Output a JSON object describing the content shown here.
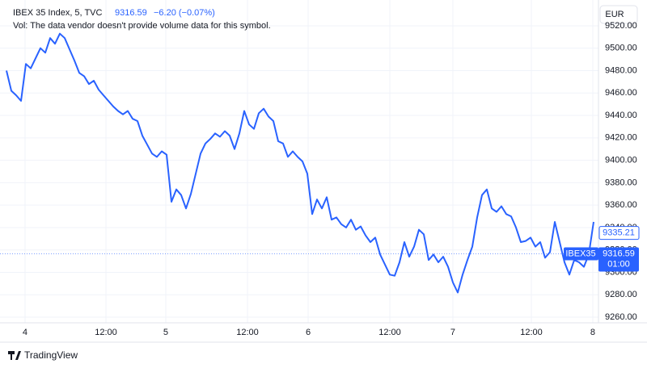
{
  "chart_data": {
    "type": "line",
    "title": "IBEX 35 Index, 5, TVC",
    "last_price": 9316.59,
    "change": "−6.20 (−0.07%)",
    "volume_note": "Vol: The data vendor doesn't provide volume data for this symbol.",
    "currency": "EUR",
    "symbol_tag": "IBEX35",
    "countdown": "01:00",
    "other_price": 9335.21,
    "branding": "TradingView",
    "color": "#2962ff",
    "grid": true,
    "values": [
      9480,
      9462,
      9458,
      9453,
      9486,
      9482,
      9491,
      9500,
      9496,
      9509,
      9504,
      9513,
      9509,
      9499,
      9489,
      9478,
      9475,
      9468,
      9471,
      9463,
      9458,
      9453,
      9448,
      9444,
      9441,
      9444,
      9437,
      9435,
      9422,
      9414,
      9406,
      9403,
      9408,
      9405,
      9363,
      9374,
      9369,
      9357,
      9370,
      9388,
      9406,
      9415,
      9419,
      9424,
      9421,
      9426,
      9422,
      9410,
      9424,
      9444,
      9432,
      9428,
      9442,
      9446,
      9439,
      9435,
      9417,
      9415,
      9403,
      9408,
      9403,
      9399,
      9388,
      9352,
      9365,
      9357,
      9367,
      9347,
      9349,
      9343,
      9340,
      9347,
      9338,
      9341,
      9333,
      9327,
      9331,
      9316,
      9307,
      9298,
      9297,
      9309,
      9327,
      9314,
      9323,
      9338,
      9334,
      9311,
      9316,
      9309,
      9314,
      9305,
      9291,
      9282,
      9298,
      9311,
      9323,
      9349,
      9369,
      9374,
      9357,
      9354,
      9359,
      9352,
      9350,
      9340,
      9327,
      9328,
      9331,
      9323,
      9327,
      9313,
      9318,
      9345,
      9327,
      9309,
      9298,
      9311,
      9309,
      9305,
      9316,
      9345
    ],
    "xlim": [
      -1.33,
      122
    ],
    "xticks": [
      {
        "value": 3.83,
        "label": "4"
      },
      {
        "value": 20.5,
        "label": "12:00"
      },
      {
        "value": 32.83,
        "label": "5"
      },
      {
        "value": 49.67,
        "label": "12:00"
      },
      {
        "value": 62.17,
        "label": "6"
      },
      {
        "value": 79,
        "label": "12:00"
      },
      {
        "value": 92,
        "label": "7"
      },
      {
        "value": 108.17,
        "label": "12:00"
      },
      {
        "value": 120.83,
        "label": "8"
      }
    ],
    "ylim": [
      9255,
      9543
    ],
    "yticks": [
      {
        "value": 9260,
        "label": "9260.00"
      },
      {
        "value": 9280,
        "label": "9280.00"
      },
      {
        "value": 9300,
        "label": "9300.00"
      },
      {
        "value": 9320,
        "label": "9320.00"
      },
      {
        "value": 9340,
        "label": "9340.00"
      },
      {
        "value": 9360,
        "label": "9360.00"
      },
      {
        "value": 9380,
        "label": "9380.00"
      },
      {
        "value": 9400,
        "label": "9400.00"
      },
      {
        "value": 9420,
        "label": "9420.00"
      },
      {
        "value": 9440,
        "label": "9440.00"
      },
      {
        "value": 9460,
        "label": "9460.00"
      },
      {
        "value": 9480,
        "label": "9480.00"
      },
      {
        "value": 9500,
        "label": "9500.00"
      },
      {
        "value": 9520,
        "label": "9520.00"
      }
    ]
  }
}
